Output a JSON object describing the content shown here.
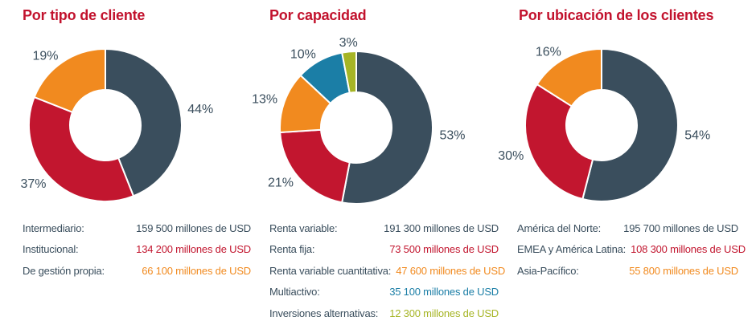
{
  "page": {
    "background": "#ffffff",
    "title_color": "#c2122d",
    "text_color": "#3a4e5d",
    "unit_text": "millones de USD"
  },
  "chart_data": [
    {
      "type": "pie",
      "donut": true,
      "title": "Por tipo de cliente",
      "start_angle_deg": 0,
      "direction": "clockwise",
      "legend_position": "bottom",
      "categories": [
        "Intermediario",
        "Institucional",
        "De gestión propia"
      ],
      "values_pct": [
        44,
        37,
        19
      ],
      "values_millions_usd": [
        159500,
        134200,
        66100
      ],
      "percent_labels": [
        "44%",
        "37%",
        "19%"
      ],
      "colors": [
        "#3a4e5d",
        "#c2162f",
        "#f18a1f"
      ],
      "legend": [
        {
          "label": "Intermediario:",
          "value": "159 500 millones de USD"
        },
        {
          "label": "Institucional:",
          "value": "134 200 millones de USD"
        },
        {
          "label": "De gestión propia:",
          "value": "66 100 millones de USD"
        }
      ]
    },
    {
      "type": "pie",
      "donut": true,
      "title": "Por capacidad",
      "start_angle_deg": 0,
      "direction": "clockwise",
      "legend_position": "bottom",
      "categories": [
        "Renta variable",
        "Renta fija",
        "Renta variable cuantitativa",
        "Multiactivo",
        "Inversiones alternativas"
      ],
      "values_pct": [
        53,
        21,
        13,
        10,
        3
      ],
      "values_millions_usd": [
        191300,
        73500,
        47600,
        35100,
        12300
      ],
      "percent_labels": [
        "53%",
        "21%",
        "13%",
        "10%",
        "3%"
      ],
      "colors": [
        "#3a4e5d",
        "#c2162f",
        "#f18a1f",
        "#1b7ea6",
        "#a6b525"
      ],
      "legend": [
        {
          "label": "Renta variable:",
          "value": "191 300 millones de USD"
        },
        {
          "label": "Renta fija:",
          "value": "73 500 millones de USD"
        },
        {
          "label": "Renta variable cuantitativa:",
          "value": "47 600 millones de USD"
        },
        {
          "label": "Multiactivo:",
          "value": "35 100 millones de USD"
        },
        {
          "label": "Inversiones alternativas:",
          "value": "12 300 millones de USD"
        }
      ]
    },
    {
      "type": "pie",
      "donut": true,
      "title": "Por ubicación de los clientes",
      "start_angle_deg": 0,
      "direction": "clockwise",
      "legend_position": "bottom",
      "categories": [
        "América del Norte",
        "EMEA y América Latina",
        "Asia-Pacífico"
      ],
      "values_pct": [
        54,
        30,
        16
      ],
      "values_millions_usd": [
        195700,
        108300,
        55800
      ],
      "percent_labels": [
        "54%",
        "30%",
        "16%"
      ],
      "colors": [
        "#3a4e5d",
        "#c2162f",
        "#f18a1f"
      ],
      "legend": [
        {
          "label": "América del Norte:",
          "value": "195 700 millones de USD"
        },
        {
          "label": "EMEA y América Latina:",
          "value": "108 300 millones de USD"
        },
        {
          "label": "Asia-Pacífico:",
          "value": "55 800 millones de USD"
        }
      ]
    }
  ]
}
